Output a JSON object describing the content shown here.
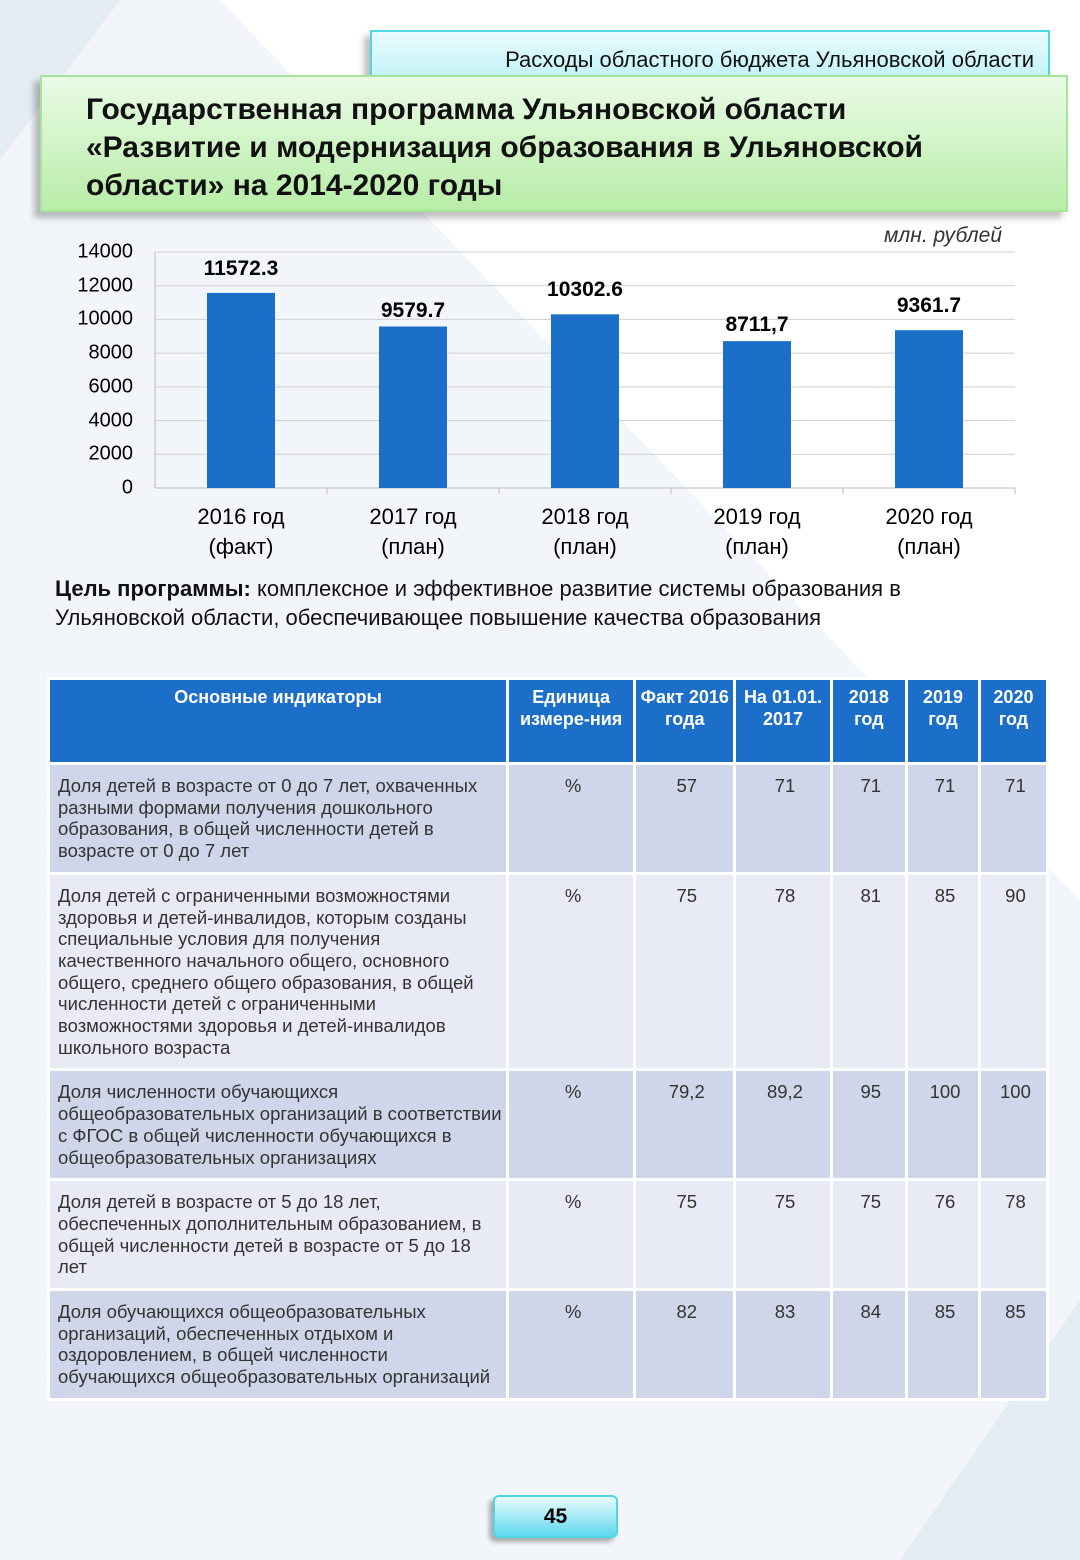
{
  "header": {
    "section": "Расходы областного бюджета Ульяновской области",
    "title": "Государственная программа Ульяновской области «Развитие и модернизация образования в Ульяновской области» на 2014-2020 годы"
  },
  "chart_data": {
    "type": "bar",
    "unit_label": "млн. рублей",
    "categories": [
      "2016 год\n(факт)",
      "2017 год\n(план)",
      "2018 год\n(план)",
      "2019 год\n(план)",
      "2020 год\n(план)"
    ],
    "values": [
      11572.3,
      9579.7,
      10302.6,
      8711.7,
      9361.7
    ],
    "value_labels": [
      "11572.3",
      "9579.7",
      "10302.6",
      "8711,7",
      "9361.7"
    ],
    "color": "#1c6fc9",
    "ylim": [
      0,
      14000
    ],
    "yticks": [
      0,
      2000,
      4000,
      6000,
      8000,
      10000,
      12000,
      14000
    ],
    "grid": true
  },
  "goal": {
    "label": "Цель программы:",
    "text": "комплексное и эффективное развитие системы образования в Ульяновской области, обеспечивающее повышение качества образования"
  },
  "table": {
    "header": [
      "Основные индикаторы",
      "Единица измере-ния",
      "Факт 2016 года",
      "На 01.01. 2017",
      "2018 год",
      "2019 год",
      "2020 год"
    ],
    "rows": [
      [
        "Доля  детей в возрасте от 0 до 7 лет, охваченных разными формами получения дошкольного образования, в общей численности детей в возрасте от 0 до 7 лет",
        "%",
        "57",
        "71",
        "71",
        "71",
        "71"
      ],
      [
        "Доля  детей с ограниченными возможностями здоровья и детей-инвалидов, которым созданы специальные условия для получения качественного начального общего, основного общего, среднего общего образования, в общей численности детей с ограниченными возможностями здоровья и детей-инвалидов школьного возраста",
        "%",
        "75",
        "78",
        "81",
        "85",
        "90"
      ],
      [
        "Доля численности обучающихся общеобразовательных организаций в соответствии с ФГОС в общей численности обучающихся в общеобразовательных организациях",
        "%",
        "79,2",
        "89,2",
        "95",
        "100",
        "100"
      ],
      [
        "Доля  детей в возрасте от 5 до 18 лет, обеспеченных дополнительным образованием, в общей численности детей в возрасте от 5 до 18 лет",
        "%",
        "75",
        "75",
        "75",
        "76",
        "78"
      ],
      [
        "Доля обучающихся общеобразовательных организаций, обеспеченных отдыхом и оздоровлением, в общей численности обучающихся общеобразовательных организаций",
        "%",
        "82",
        "83",
        "84",
        "85",
        "85"
      ]
    ]
  },
  "page_number": "45"
}
